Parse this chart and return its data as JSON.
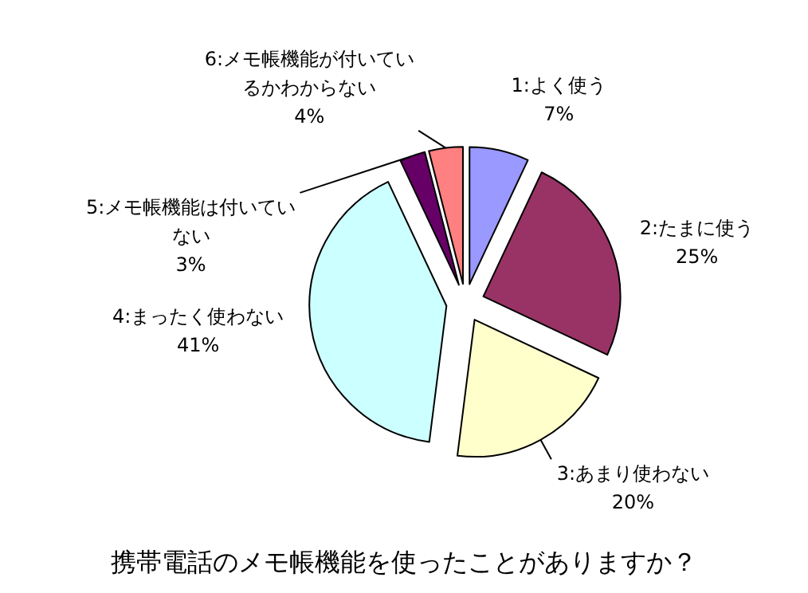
{
  "chart_data": {
    "type": "pie",
    "title": "携帯電話のメモ帳機能を使ったことがありますか？",
    "categories": [
      "1:よく使う",
      "2:たまに使う",
      "3:あまり使わない",
      "4:まったく使わない",
      "5:メモ帳機能は付いていない",
      "6:メモ帳機能が付いているかわからない"
    ],
    "values": [
      7,
      25,
      20,
      41,
      3,
      4
    ],
    "value_labels": [
      "7%",
      "25%",
      "20%",
      "41%",
      "3%",
      "4%"
    ],
    "colors": [
      "#9999ff",
      "#993366",
      "#ffffcc",
      "#ccffff",
      "#660066",
      "#ff8080"
    ]
  }
}
